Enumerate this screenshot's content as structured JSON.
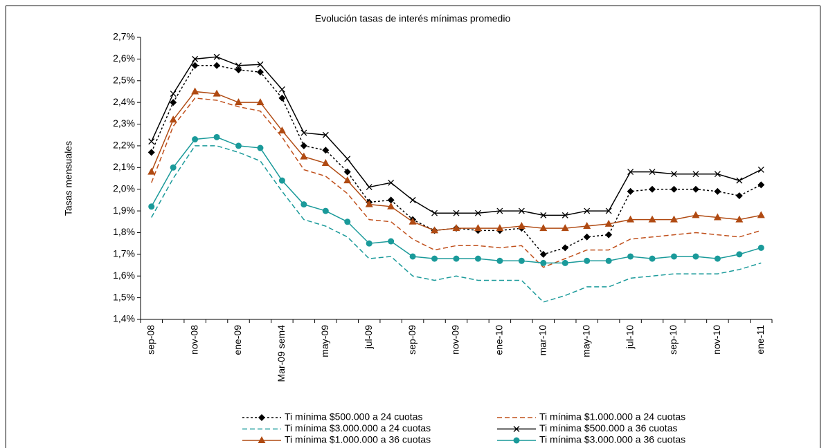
{
  "chart_data": {
    "type": "line",
    "title": "Evolución tasas de interés mínimas promedio",
    "y_label": "Tasas mensuales",
    "categories": [
      "sep-08",
      null,
      "nov-08",
      null,
      "ene-09",
      null,
      "Mar-09 sem4",
      null,
      "may-09",
      null,
      "jul-09",
      null,
      "sep-09",
      null,
      "nov-09",
      null,
      "ene-10",
      null,
      "mar-10",
      null,
      "may-10",
      null,
      "jul-10",
      null,
      "sep-10",
      null,
      "nov-10",
      null,
      "ene-11"
    ],
    "ylim": [
      1.4,
      2.7
    ],
    "yticks": [
      {
        "value": 1.4,
        "label": "1,4%"
      },
      {
        "value": 1.5,
        "label": "1,5%"
      },
      {
        "value": 1.6,
        "label": "1,6%"
      },
      {
        "value": 1.7,
        "label": "1,7%"
      },
      {
        "value": 1.8,
        "label": "1,8%"
      },
      {
        "value": 1.9,
        "label": "1,9%"
      },
      {
        "value": 2.0,
        "label": "2,0%"
      },
      {
        "value": 2.1,
        "label": "2,1%"
      },
      {
        "value": 2.2,
        "label": "2,2%"
      },
      {
        "value": 2.3,
        "label": "2,3%"
      },
      {
        "value": 2.4,
        "label": "2,4%"
      },
      {
        "value": 2.5,
        "label": "2,5%"
      },
      {
        "value": 2.6,
        "label": "2,6%"
      },
      {
        "value": 2.7,
        "label": "2,7%"
      }
    ],
    "series": [
      {
        "name": "Ti mínima $500.000 a 24 cuotas",
        "color": "#000000",
        "dash": "dotted",
        "marker": "diamond",
        "values": [
          2.17,
          2.4,
          2.57,
          2.57,
          2.55,
          2.54,
          2.42,
          2.2,
          2.18,
          2.08,
          1.94,
          1.95,
          1.86,
          1.81,
          1.82,
          1.81,
          1.81,
          1.82,
          1.7,
          1.73,
          1.78,
          1.79,
          1.99,
          2.0,
          2.0,
          2.0,
          1.99,
          1.97,
          2.02
        ]
      },
      {
        "name": "Ti mínima $1.000.000 a 24 cuotas",
        "color": "#c0501c",
        "dash": "dashed",
        "marker": "none",
        "values": [
          2.03,
          2.29,
          2.42,
          2.41,
          2.38,
          2.36,
          2.24,
          2.09,
          2.06,
          1.98,
          1.86,
          1.85,
          1.77,
          1.72,
          1.74,
          1.74,
          1.73,
          1.74,
          1.64,
          1.68,
          1.72,
          1.72,
          1.77,
          1.78,
          1.79,
          1.8,
          1.79,
          1.78,
          1.81
        ]
      },
      {
        "name": "Ti mínima $3.000.000 a 24 cuotas",
        "color": "#1a9a9a",
        "dash": "dashed",
        "marker": "none",
        "values": [
          1.87,
          2.05,
          2.2,
          2.2,
          2.17,
          2.13,
          1.99,
          1.86,
          1.83,
          1.78,
          1.68,
          1.69,
          1.6,
          1.58,
          1.6,
          1.58,
          1.58,
          1.58,
          1.48,
          1.51,
          1.55,
          1.55,
          1.59,
          1.6,
          1.61,
          1.61,
          1.61,
          1.63,
          1.66
        ]
      },
      {
        "name": "Ti mínima $500.000 a 36 cuotas",
        "color": "#000000",
        "dash": "solid",
        "marker": "x",
        "values": [
          2.22,
          2.44,
          2.6,
          2.61,
          2.57,
          2.575,
          2.46,
          2.26,
          2.25,
          2.14,
          2.01,
          2.03,
          1.95,
          1.89,
          1.89,
          1.89,
          1.9,
          1.9,
          1.88,
          1.88,
          1.9,
          1.9,
          2.08,
          2.08,
          2.07,
          2.07,
          2.07,
          2.04,
          2.09
        ]
      },
      {
        "name": "Ti mínima $1.000.000 a 36 cuotas",
        "color": "#b04a12",
        "dash": "solid",
        "marker": "triangle",
        "values": [
          2.08,
          2.32,
          2.45,
          2.44,
          2.4,
          2.4,
          2.27,
          2.15,
          2.12,
          2.04,
          1.93,
          1.92,
          1.85,
          1.81,
          1.82,
          1.82,
          1.82,
          1.83,
          1.82,
          1.82,
          1.83,
          1.84,
          1.86,
          1.86,
          1.86,
          1.88,
          1.87,
          1.86,
          1.88
        ]
      },
      {
        "name": "Ti mínima $3.000.000 a 36 cuotas",
        "color": "#1a9a9a",
        "dash": "solid",
        "marker": "circle",
        "values": [
          1.92,
          2.1,
          2.23,
          2.24,
          2.2,
          2.19,
          2.04,
          1.93,
          1.9,
          1.85,
          1.75,
          1.76,
          1.69,
          1.68,
          1.68,
          1.68,
          1.67,
          1.67,
          1.66,
          1.66,
          1.67,
          1.67,
          1.69,
          1.68,
          1.69,
          1.69,
          1.68,
          1.7,
          1.73
        ]
      }
    ]
  }
}
